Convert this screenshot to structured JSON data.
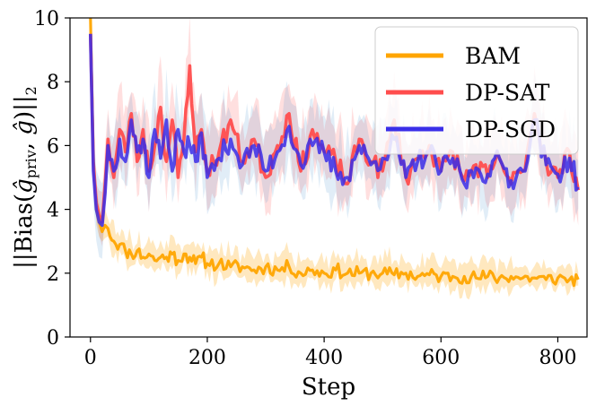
{
  "chart_data": {
    "type": "line",
    "xlabel": "Step",
    "ylabel": "||Bias(ĝ_priv, ĝ)||₂",
    "ylabel_parts": {
      "pre": "||Bias(",
      "g1": "ĝ",
      "g1_sub": "priv",
      "mid": ", ",
      "g2": "ĝ",
      "post": ")||",
      "post_sub": "2"
    },
    "xlim": [
      -35,
      850
    ],
    "ylim": [
      0,
      10
    ],
    "xticks": [
      0,
      200,
      400,
      600,
      800
    ],
    "yticks": [
      0,
      2,
      4,
      6,
      8,
      10
    ],
    "grid": false,
    "legend_position": "top-right",
    "x": [
      0,
      5,
      10,
      15,
      20,
      25,
      30,
      40,
      50,
      60,
      70,
      80,
      90,
      100,
      110,
      120,
      130,
      140,
      150,
      160,
      170,
      180,
      190,
      200,
      220,
      240,
      260,
      280,
      300,
      320,
      340,
      360,
      380,
      400,
      420,
      440,
      460,
      480,
      500,
      520,
      540,
      560,
      580,
      600,
      620,
      640,
      660,
      680,
      700,
      720,
      740,
      760,
      780,
      800,
      820,
      835
    ],
    "series": [
      {
        "name": "BAM",
        "color": "#ffa500",
        "values": [
          10.0,
          5.5,
          4.0,
          3.6,
          3.3,
          3.5,
          3.4,
          3.0,
          2.9,
          2.7,
          2.6,
          2.7,
          2.5,
          2.6,
          2.4,
          2.5,
          2.5,
          2.6,
          2.4,
          2.6,
          2.5,
          2.3,
          2.5,
          2.3,
          2.3,
          2.2,
          2.2,
          2.1,
          2.2,
          2.1,
          2.2,
          2.0,
          2.1,
          2.0,
          2.1,
          2.0,
          2.0,
          2.0,
          2.0,
          1.95,
          2.0,
          1.9,
          1.95,
          1.9,
          1.9,
          1.9,
          1.85,
          1.9,
          1.85,
          1.9,
          1.85,
          1.85,
          1.8,
          1.85,
          1.8,
          1.8
        ]
      },
      {
        "name": "DP-SAT",
        "color": "#ff4d4d",
        "values": [
          9.5,
          5.5,
          4.2,
          3.8,
          3.6,
          4.8,
          6.2,
          5.0,
          6.5,
          5.8,
          7.0,
          5.5,
          6.5,
          5.2,
          6.0,
          7.2,
          5.5,
          6.8,
          5.0,
          6.2,
          8.5,
          5.8,
          6.5,
          5.2,
          5.8,
          6.8,
          5.5,
          6.2,
          5.0,
          6.0,
          7.0,
          5.2,
          6.5,
          5.8,
          5.5,
          4.8,
          6.2,
          5.5,
          5.2,
          6.8,
          5.0,
          5.6,
          6.0,
          5.2,
          5.8,
          4.9,
          5.4,
          5.0,
          5.6,
          4.8,
          5.2,
          7.0,
          5.5,
          5.0,
          5.8,
          4.6
        ]
      },
      {
        "name": "DP-SGD",
        "color": "#3a2ee8",
        "values": [
          9.5,
          5.2,
          4.0,
          3.6,
          3.5,
          4.5,
          6.0,
          5.2,
          6.2,
          5.5,
          6.8,
          5.8,
          6.2,
          5.0,
          6.5,
          5.6,
          6.8,
          5.2,
          6.5,
          5.8,
          6.0,
          5.5,
          6.4,
          5.0,
          5.6,
          6.2,
          5.4,
          6.0,
          5.2,
          5.8,
          6.6,
          5.4,
          6.0,
          5.8,
          5.2,
          5.0,
          6.0,
          5.4,
          5.6,
          6.2,
          5.0,
          5.5,
          5.8,
          5.2,
          5.6,
          4.8,
          5.3,
          5.1,
          5.6,
          4.9,
          5.2,
          6.8,
          5.4,
          5.1,
          5.6,
          4.7
        ]
      }
    ]
  }
}
